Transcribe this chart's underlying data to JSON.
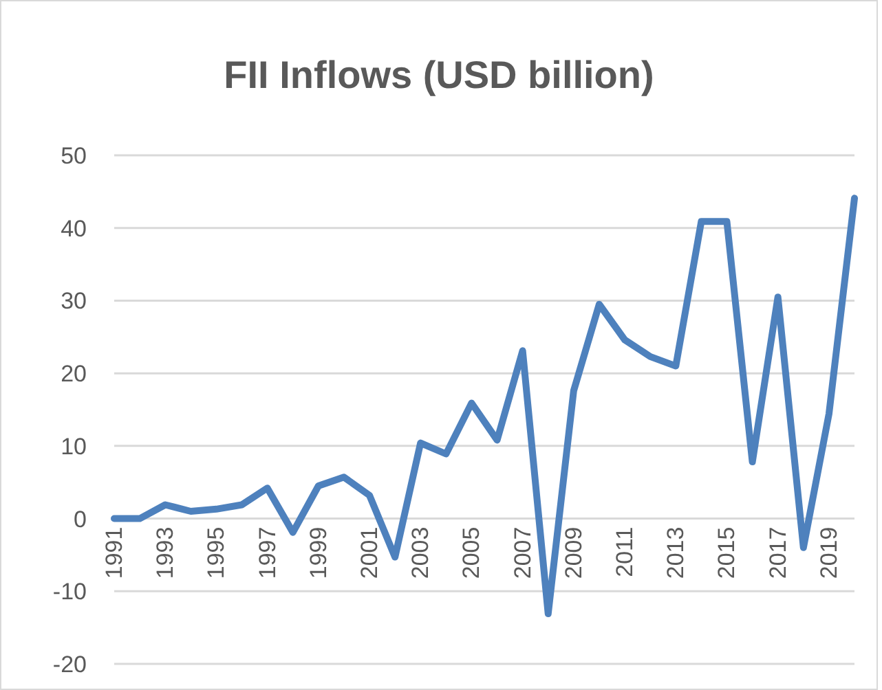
{
  "chart_data": {
    "type": "line",
    "title": "FII Inflows (USD billion)",
    "categories": [
      "1991",
      null,
      "1993",
      null,
      "1995",
      null,
      "1997",
      null,
      "1999",
      null,
      "2001",
      null,
      "2003",
      null,
      "2005",
      null,
      "2007",
      null,
      "2009",
      null,
      "2011",
      null,
      "2013",
      null,
      "2015",
      null,
      "2017",
      null,
      "2019",
      null
    ],
    "series": [
      {
        "color": "#4e81bd",
        "values": [
          0,
          0,
          1.9,
          1,
          1.3,
          1.9,
          4.2,
          -1.9,
          4.5,
          5.7,
          3.2,
          -5.3,
          10.4,
          8.9,
          15.9,
          10.8,
          23.1,
          -13.1,
          17.6,
          29.5,
          24.6,
          22.3,
          21,
          40.9,
          40.9,
          7.8,
          30.5,
          -4,
          14.4,
          44.1
        ]
      }
    ],
    "ylim": [
      -20,
      50
    ],
    "yticks": [
      -20,
      -10,
      0,
      10,
      20,
      30,
      40,
      50
    ],
    "grid": "y",
    "marker": "none",
    "line_style": "solid"
  }
}
